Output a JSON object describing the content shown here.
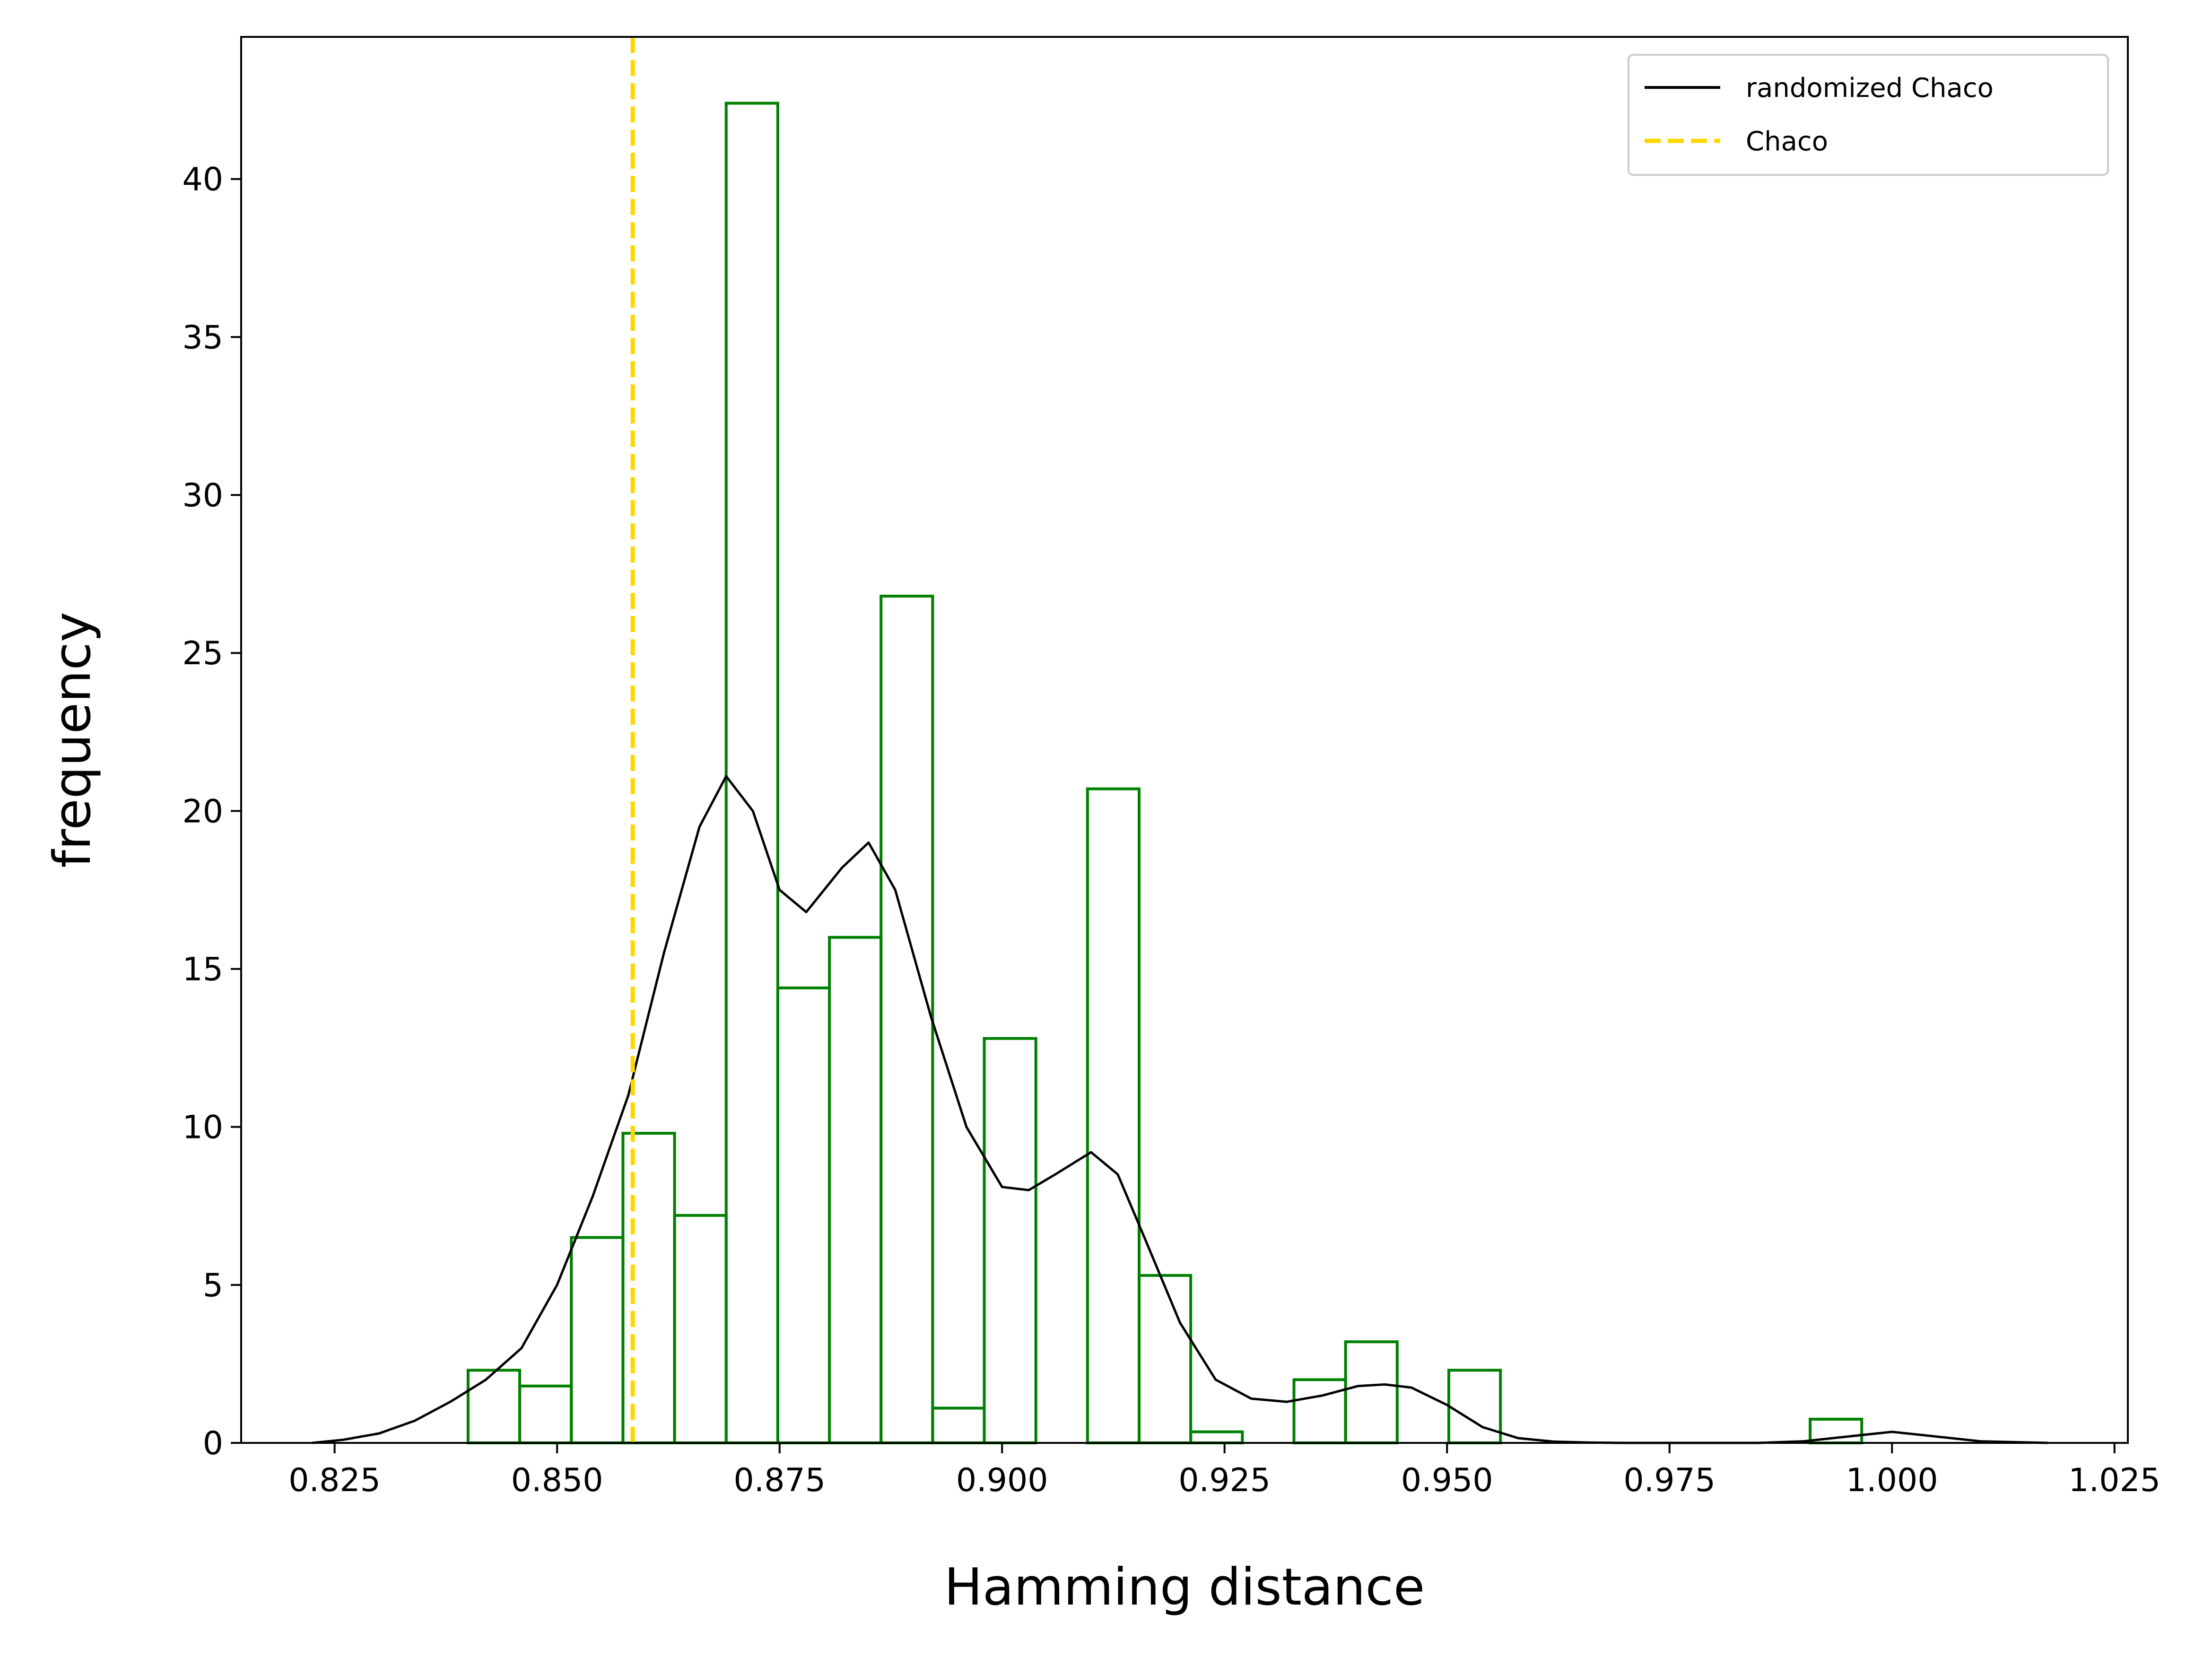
{
  "chart_data": {
    "type": "histogram",
    "xlabel": "Hamming distance",
    "ylabel": "frequency",
    "xlim": [
      0.8145,
      1.0265
    ],
    "ylim": [
      0,
      44.5
    ],
    "x_ticks": [
      0.825,
      0.85,
      0.875,
      0.9,
      0.925,
      0.95,
      0.975,
      1.0,
      1.025
    ],
    "x_tick_labels": [
      "0.825",
      "0.850",
      "0.875",
      "0.900",
      "0.925",
      "0.950",
      "0.975",
      "1.000",
      "1.025"
    ],
    "y_ticks": [
      0,
      5,
      10,
      15,
      20,
      25,
      30,
      35,
      40
    ],
    "y_tick_labels": [
      "0",
      "5",
      "10",
      "15",
      "20",
      "25",
      "30",
      "35",
      "40"
    ],
    "grid": false,
    "legend_position": "top-right",
    "legend": [
      {
        "label": "randomized Chaco",
        "style": "solid",
        "color": "#000000"
      },
      {
        "label": "Chaco",
        "style": "dashed",
        "color": "#ffd700"
      }
    ],
    "histogram": {
      "color": "#008000",
      "bin_edges": [
        0.84,
        0.8458,
        0.8516,
        0.8574,
        0.8632,
        0.869,
        0.8748,
        0.8806,
        0.8864,
        0.8922,
        0.898,
        0.9038,
        0.9096,
        0.9154,
        0.9212,
        0.927,
        0.9328,
        0.9386,
        0.9444,
        0.9502,
        0.956,
        0.9618,
        0.9676,
        0.9734,
        0.9792,
        0.985,
        0.9908,
        0.9966,
        1.0024
      ],
      "counts": [
        2.3,
        1.8,
        6.5,
        9.8,
        7.2,
        42.4,
        14.4,
        16.0,
        26.8,
        1.1,
        12.8,
        0,
        20.7,
        5.3,
        0.35,
        0,
        2.0,
        3.2,
        0,
        2.3,
        0,
        0,
        0,
        0,
        0,
        0,
        0.75,
        0
      ]
    },
    "series": [
      {
        "name": "randomized Chaco",
        "type": "line",
        "color": "#000000",
        "x": [
          0.8225,
          0.826,
          0.83,
          0.834,
          0.838,
          0.842,
          0.846,
          0.85,
          0.854,
          0.858,
          0.862,
          0.866,
          0.869,
          0.872,
          0.875,
          0.878,
          0.882,
          0.885,
          0.888,
          0.892,
          0.896,
          0.9,
          0.903,
          0.906,
          0.91,
          0.913,
          0.916,
          0.92,
          0.924,
          0.928,
          0.932,
          0.936,
          0.94,
          0.943,
          0.946,
          0.95,
          0.954,
          0.958,
          0.962,
          0.966,
          0.97,
          0.975,
          0.98,
          0.985,
          0.99,
          0.995,
          1.0,
          1.005,
          1.01,
          1.0175
        ],
        "y": [
          0,
          0.1,
          0.3,
          0.7,
          1.3,
          2.0,
          3.0,
          5.0,
          7.8,
          11.0,
          15.5,
          19.5,
          21.1,
          20.0,
          17.5,
          16.8,
          18.2,
          19.0,
          17.5,
          13.5,
          10.0,
          8.1,
          8.0,
          8.5,
          9.2,
          8.5,
          6.5,
          3.8,
          2.0,
          1.4,
          1.3,
          1.5,
          1.8,
          1.85,
          1.75,
          1.2,
          0.5,
          0.15,
          0.04,
          0.01,
          0,
          0,
          0,
          0,
          0.05,
          0.2,
          0.35,
          0.2,
          0.05,
          0
        ]
      }
    ],
    "vertical_lines": [
      {
        "name": "Chaco",
        "x": 0.8585,
        "style": "dashed",
        "color": "#ffd700"
      }
    ]
  }
}
